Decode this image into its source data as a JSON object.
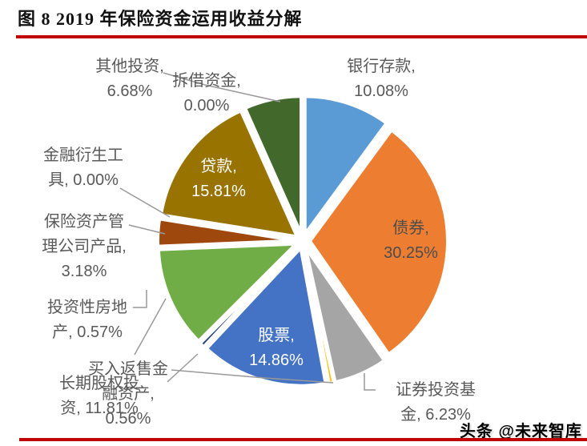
{
  "figure": {
    "title": "图 8  2019 年保险资金运用收益分解",
    "watermark": "头条 @未来智库"
  },
  "colors": {
    "rule": "#C00000",
    "label_text": "#595959",
    "leader_line": "#999999",
    "slice_gap": "#ffffff"
  },
  "chart_data": {
    "type": "pie",
    "title": "2019 年保险资金运用收益分解",
    "unit": "%",
    "start_angle_deg": 0,
    "direction": "clockwise",
    "legend_position": "none",
    "slices": [
      {
        "id": "bank",
        "label": "银行存款",
        "value": 10.08,
        "color": "#5B9BD5"
      },
      {
        "id": "bonds",
        "label": "债券",
        "value": 30.25,
        "color": "#ED7D31"
      },
      {
        "id": "funds",
        "label": "证券投资基金",
        "value": 6.23,
        "color": "#A5A5A5"
      },
      {
        "id": "buyback",
        "label": "买入返售金融资产",
        "value": 0.56,
        "color": "#FFC000"
      },
      {
        "id": "stocks",
        "label": "股票",
        "value": 14.86,
        "color": "#4472C4"
      },
      {
        "id": "realestate",
        "label": "投资性房地产",
        "value": 0.57,
        "color": "#264478"
      },
      {
        "id": "equity",
        "label": "长期股权投资",
        "value": 11.81,
        "color": "#70AD47"
      },
      {
        "id": "assetmgmt",
        "label": "保险资产管理公司产品",
        "value": 3.18,
        "color": "#9E480E"
      },
      {
        "id": "derivatives",
        "label": "金融衍生工具",
        "value": 0.0,
        "color": "#636363"
      },
      {
        "id": "loans",
        "label": "贷款",
        "value": 15.81,
        "color": "#997300"
      },
      {
        "id": "lending",
        "label": "拆借资金",
        "value": 0.0,
        "color": "#255E91"
      },
      {
        "id": "other",
        "label": "其他投资",
        "value": 6.68,
        "color": "#43682B"
      }
    ],
    "labels": {
      "other": "其他投资,\n6.68%",
      "lending": "拆借资金,\n0.00%",
      "bank": "银行存款,\n10.08%",
      "derivatives": "金融衍生工\n具, 0.00%",
      "assetmgmt": "保险资产管\n理公司产品,\n3.18%",
      "realestate": "投资性房地\n产, 0.57%",
      "equity": "长期股权投\n资, 11.81%",
      "buyback": "买入返售金\n融资产,\n0.56%",
      "funds": "证券投资基\n金, 6.23%",
      "loans": "贷款,\n15.81%",
      "bonds": "债券,\n30.25%",
      "stocks": "股票,\n14.86%"
    }
  }
}
